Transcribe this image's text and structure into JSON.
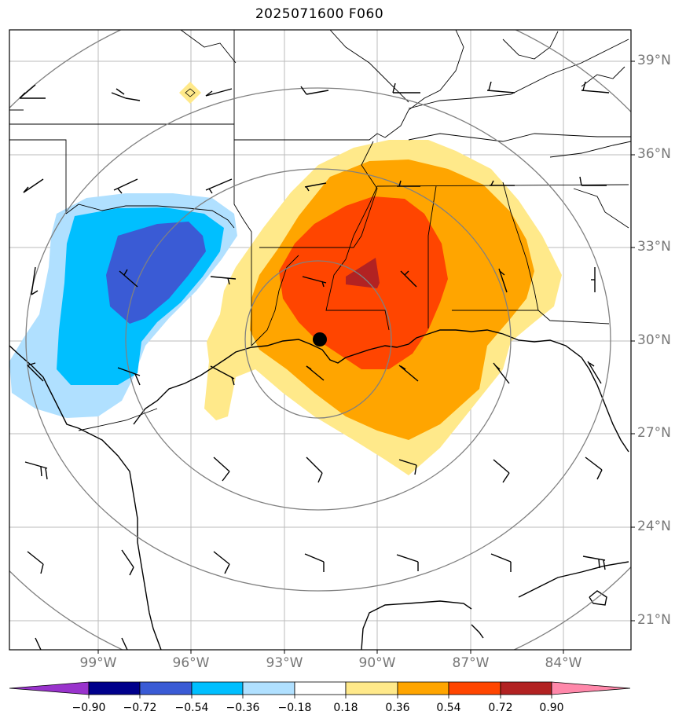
{
  "title": "2025071600 F060",
  "latitude_labels": [
    "39°N",
    "36°N",
    "33°N",
    "30°N",
    "27°N",
    "24°N",
    "21°N"
  ],
  "longitude_labels": [
    "99°W",
    "96°W",
    "93°W",
    "90°W",
    "87°W",
    "84°W"
  ],
  "colorbar": {
    "ticks": [
      "−0.90",
      "−0.72",
      "−0.54",
      "−0.36",
      "−0.18",
      "0.18",
      "0.36",
      "0.54",
      "0.72",
      "0.90"
    ],
    "colors": [
      "#9933cc",
      "#00008b",
      "#3a5bd5",
      "#00bfff",
      "#b0e0ff",
      "#ffffff",
      "#ffe98a",
      "#ffa500",
      "#ff4500",
      "#b22222",
      "#ff88aa"
    ],
    "extend": "both"
  },
  "map_colors": {
    "land_border": "#000000",
    "gridline": "#bbbbbb",
    "range_ring": "#808080",
    "center_marker": "#000000"
  },
  "icons": [
    "center-point-marker",
    "wind-barb"
  ]
}
